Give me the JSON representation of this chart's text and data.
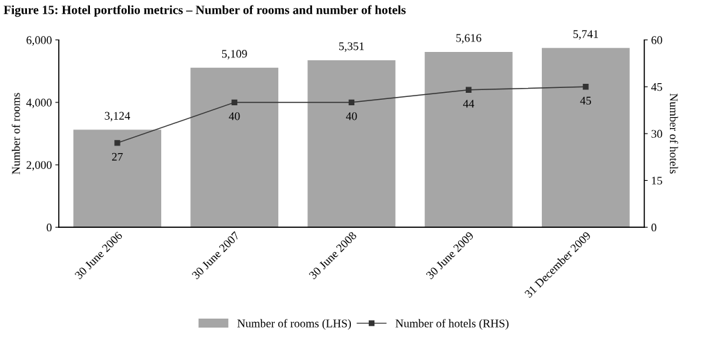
{
  "chart_data": {
    "type": "bar",
    "title": "Figure 15: Hotel portfolio metrics – Number of rooms and number of hotels",
    "categories": [
      "30 June 2006",
      "30 June 2007",
      "30 June 2008",
      "30 June 2009",
      "31 December 2009"
    ],
    "series": [
      {
        "name": "Number of rooms (LHS)",
        "color": "#a6a6a6",
        "values": [
          3124,
          5109,
          5351,
          5616,
          5741
        ],
        "value_labels": [
          "3,124",
          "5,109",
          "5,351",
          "5,616",
          "5,741"
        ]
      },
      {
        "name": "Number of hotels (RHS)",
        "type": "line",
        "axis": "y2",
        "color": "#333333",
        "marker": "square",
        "values": [
          27,
          40,
          40,
          44,
          45
        ]
      }
    ],
    "ylabel": "Number of rooms",
    "y2label": "Number of hotels",
    "ylim": [
      0,
      6000
    ],
    "yticks": [
      0,
      {
        "value": 2000,
        "label": "2,000"
      },
      {
        "value": 4000,
        "label": "4,000"
      },
      {
        "value": 6000,
        "label": "6,000"
      }
    ],
    "y2lim": [
      0,
      60
    ],
    "y2ticks": [
      0,
      15,
      30,
      45,
      60
    ],
    "data_labels": true,
    "legend": "bottom"
  }
}
